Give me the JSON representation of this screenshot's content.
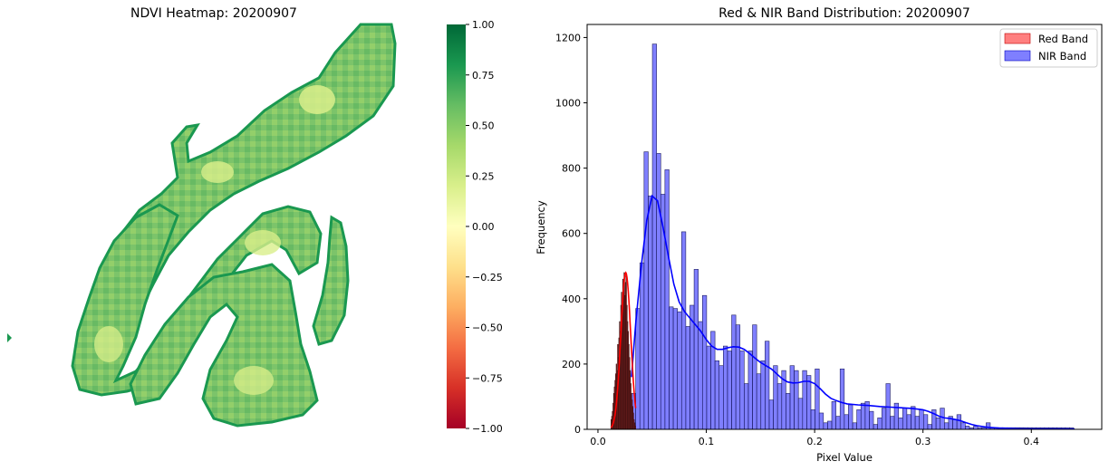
{
  "chart_data": [
    {
      "type": "heatmap",
      "title": "NDVI Heatmap: 20200907",
      "colormap": "RdYlGn",
      "colorbar": {
        "min": -1.0,
        "max": 1.0,
        "ticks": [
          "1.00",
          "0.75",
          "0.50",
          "0.25",
          "0.00",
          "−0.25",
          "−0.50",
          "−0.75",
          "−1.00"
        ]
      },
      "value_range_shown": [
        0.2,
        1.0
      ],
      "background": "#ffffff"
    },
    {
      "type": "bar",
      "subtype": "histogram_with_kde",
      "title": "Red & NIR Band Distribution: 20200907",
      "xlabel": "Pixel Value",
      "ylabel": "Frequency",
      "xlim": [
        -0.01,
        0.465
      ],
      "ylim": [
        0,
        1240
      ],
      "xticks": [
        "0.0",
        "0.1",
        "0.2",
        "0.3",
        "0.4"
      ],
      "yticks": [
        "0",
        "200",
        "400",
        "600",
        "800",
        "1000",
        "1200"
      ],
      "legend": {
        "placement": "top-right",
        "entries": [
          "Red Band",
          "NIR Band"
        ]
      },
      "series": [
        {
          "name": "Red Band",
          "color": "#ff0000",
          "bin_width": 0.0006,
          "x_start": 0.012,
          "values": [
            30,
            40,
            55,
            80,
            110,
            130,
            150,
            170,
            200,
            180,
            260,
            220,
            280,
            330,
            300,
            380,
            420,
            360,
            460,
            420,
            480,
            410,
            450,
            470,
            380,
            330,
            300,
            260,
            220,
            180,
            140,
            110,
            90,
            70,
            50,
            30,
            20,
            10
          ],
          "kde_peak": 480
        },
        {
          "name": "NIR Band",
          "color": "#0000ff",
          "bin_width": 0.00385,
          "x_start": 0.031,
          "values": [
            110,
            370,
            510,
            850,
            715,
            1180,
            845,
            720,
            795,
            375,
            370,
            360,
            605,
            315,
            380,
            490,
            330,
            410,
            255,
            300,
            210,
            195,
            255,
            240,
            350,
            320,
            240,
            140,
            240,
            320,
            170,
            210,
            270,
            90,
            195,
            140,
            180,
            110,
            195,
            180,
            95,
            180,
            165,
            60,
            185,
            50,
            20,
            25,
            85,
            40,
            185,
            45,
            75,
            20,
            60,
            80,
            85,
            55,
            15,
            35,
            65,
            140,
            40,
            80,
            35,
            65,
            45,
            70,
            40,
            60,
            45,
            15,
            60,
            35,
            65,
            20,
            40,
            30,
            45,
            20,
            10,
            5,
            10,
            5,
            5,
            20,
            5,
            5,
            5,
            5,
            5,
            5,
            5,
            5,
            5,
            5,
            5,
            5,
            5,
            5,
            5,
            5,
            5,
            5,
            5,
            5
          ],
          "kde_points": [
            [
              0.031,
              160
            ],
            [
              0.035,
              330
            ],
            [
              0.04,
              500
            ],
            [
              0.045,
              640
            ],
            [
              0.05,
              715
            ],
            [
              0.055,
              700
            ],
            [
              0.06,
              620
            ],
            [
              0.065,
              530
            ],
            [
              0.07,
              445
            ],
            [
              0.075,
              390
            ],
            [
              0.08,
              360
            ],
            [
              0.085,
              340
            ],
            [
              0.09,
              320
            ],
            [
              0.095,
              300
            ],
            [
              0.1,
              275
            ],
            [
              0.105,
              255
            ],
            [
              0.11,
              245
            ],
            [
              0.115,
              245
            ],
            [
              0.12,
              250
            ],
            [
              0.125,
              253
            ],
            [
              0.13,
              252
            ],
            [
              0.135,
              245
            ],
            [
              0.14,
              232
            ],
            [
              0.145,
              218
            ],
            [
              0.15,
              205
            ],
            [
              0.155,
              195
            ],
            [
              0.16,
              185
            ],
            [
              0.165,
              170
            ],
            [
              0.17,
              155
            ],
            [
              0.175,
              145
            ],
            [
              0.18,
              142
            ],
            [
              0.185,
              143
            ],
            [
              0.19,
              147
            ],
            [
              0.195,
              147
            ],
            [
              0.2,
              140
            ],
            [
              0.205,
              125
            ],
            [
              0.21,
              108
            ],
            [
              0.215,
              95
            ],
            [
              0.22,
              88
            ],
            [
              0.225,
              82
            ],
            [
              0.23,
              78
            ],
            [
              0.24,
              75
            ],
            [
              0.25,
              73
            ],
            [
              0.26,
              70
            ],
            [
              0.27,
              68
            ],
            [
              0.28,
              66
            ],
            [
              0.29,
              64
            ],
            [
              0.3,
              60
            ],
            [
              0.305,
              55
            ],
            [
              0.31,
              48
            ],
            [
              0.315,
              40
            ],
            [
              0.32,
              35
            ],
            [
              0.325,
              33
            ],
            [
              0.33,
              30
            ],
            [
              0.335,
              26
            ],
            [
              0.34,
              20
            ],
            [
              0.345,
              15
            ],
            [
              0.35,
              11
            ],
            [
              0.36,
              6
            ],
            [
              0.37,
              4
            ],
            [
              0.38,
              3
            ],
            [
              0.39,
              2
            ],
            [
              0.4,
              1.5
            ],
            [
              0.42,
              1
            ],
            [
              0.44,
              0.5
            ]
          ]
        }
      ]
    }
  ]
}
